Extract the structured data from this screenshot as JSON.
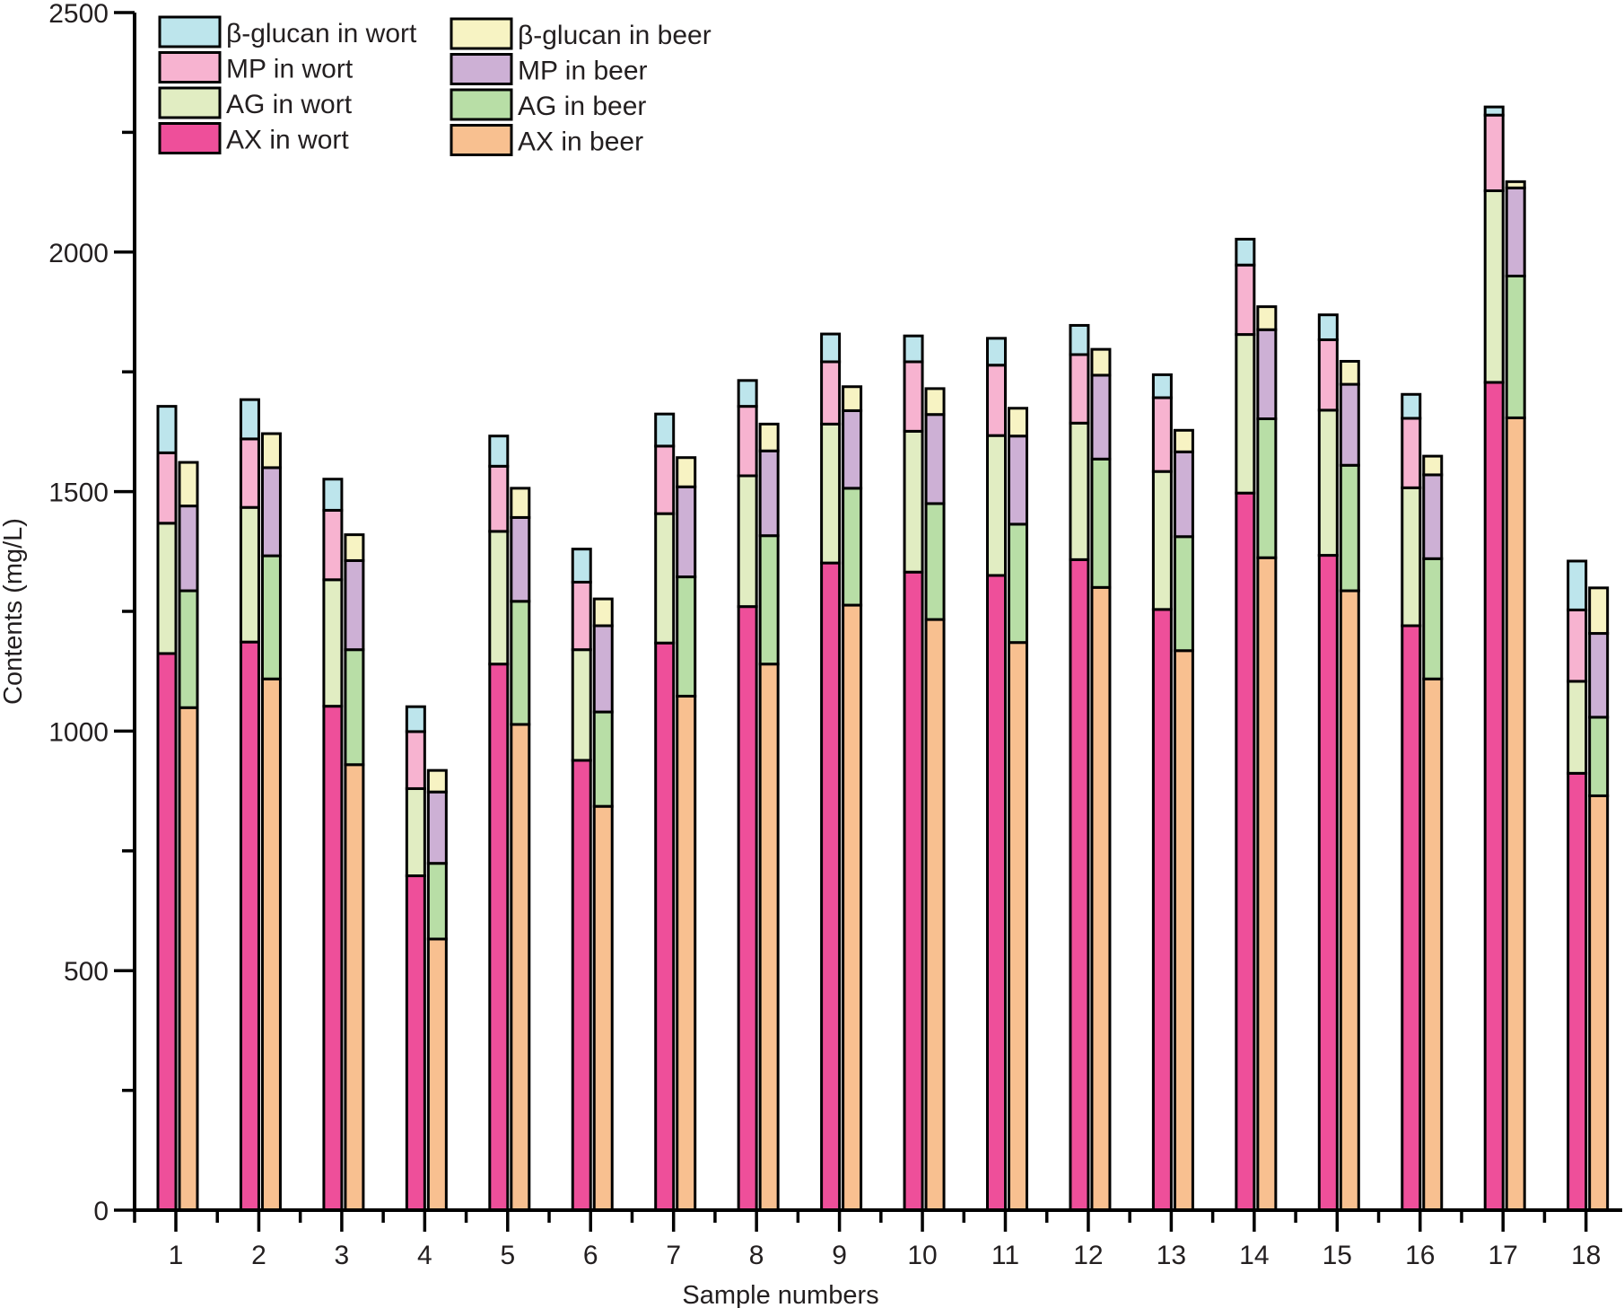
{
  "chart_data": {
    "type": "bar",
    "stacked": true,
    "grouped": true,
    "title": "",
    "xlabel": "Sample numbers",
    "ylabel": "Contents (mg/L)",
    "ylim": [
      0,
      2500
    ],
    "yticks": [
      0,
      500,
      1000,
      1500,
      2000,
      2500
    ],
    "yticks_minor_step": 250,
    "grid": false,
    "legend_position": "top-left",
    "categories": [
      "1",
      "2",
      "3",
      "4",
      "5",
      "6",
      "7",
      "8",
      "9",
      "10",
      "11",
      "12",
      "13",
      "14",
      "15",
      "16",
      "17",
      "18"
    ],
    "groups": [
      {
        "name": "wort",
        "series": [
          {
            "name": "AX in wort",
            "color": "#ee4f9a",
            "values": [
              1162,
              1186,
              1052,
              698,
              1140,
              939,
              1184,
              1260,
              1351,
              1332,
              1325,
              1358,
              1254,
              1497,
              1367,
              1220,
              1728,
              912
            ]
          },
          {
            "name": "AG in wort",
            "color": "#e1edc2",
            "values": [
              272,
              281,
              264,
              182,
              277,
              231,
              270,
              273,
              290,
              294,
              292,
              285,
              288,
              331,
              303,
              288,
              400,
              192
            ]
          },
          {
            "name": "MP in wort",
            "color": "#f7b3d0",
            "values": [
              147,
              143,
              145,
              119,
              136,
              141,
              141,
              145,
              130,
              145,
              147,
              143,
              154,
              145,
              147,
              145,
              158,
              149
            ]
          },
          {
            "name": "β-glucan in wort",
            "color": "#bde5ec",
            "values": [
              97,
              82,
              65,
              52,
              63,
              69,
              67,
              54,
              58,
              54,
              56,
              61,
              48,
              54,
              52,
              50,
              17,
              102
            ]
          }
        ]
      },
      {
        "name": "beer",
        "series": [
          {
            "name": "AX in beer",
            "color": "#f8c090",
            "values": [
              1049,
              1109,
              930,
              566,
              1014,
              843,
              1073,
              1140,
              1263,
              1233,
              1185,
              1300,
              1168,
              1362,
              1293,
              1109,
              1654,
              865
            ]
          },
          {
            "name": "AG in beer",
            "color": "#b8dea6",
            "values": [
              244,
              257,
              240,
              158,
              257,
              197,
              249,
              268,
              244,
              242,
              247,
              268,
              238,
              290,
              262,
              251,
              296,
              164
            ]
          },
          {
            "name": "MP in beer",
            "color": "#cdb0d5",
            "values": [
              177,
              184,
              186,
              149,
              175,
              180,
              188,
              177,
              162,
              186,
              184,
              175,
              177,
              186,
              169,
              175,
              184,
              175
            ]
          },
          {
            "name": "β-glucan in beer",
            "color": "#f7f3c3",
            "values": [
              91,
              71,
              54,
              45,
              61,
              56,
              61,
              56,
              50,
              54,
              58,
              54,
              45,
              48,
              48,
              39,
              13,
              95
            ]
          }
        ]
      }
    ],
    "legend": {
      "columns": [
        [
          "β-glucan in wort",
          "MP in wort",
          "AG in wort",
          "AX in wort"
        ],
        [
          "β-glucan in beer",
          "MP in beer",
          "AG in beer",
          "AX in beer"
        ]
      ]
    }
  }
}
